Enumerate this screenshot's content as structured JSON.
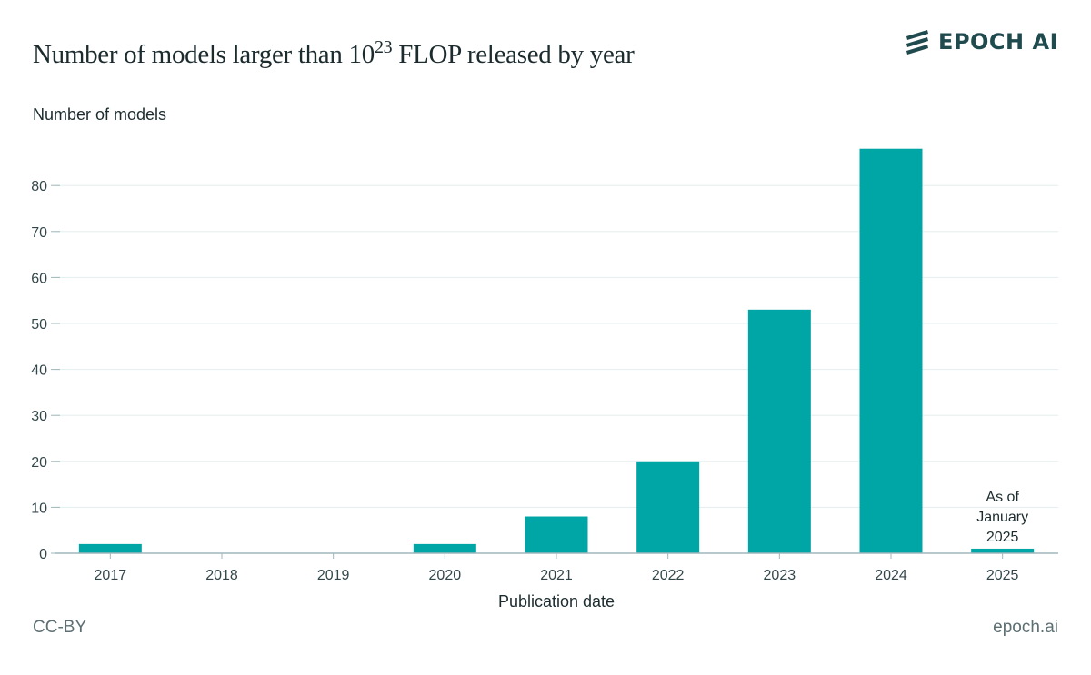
{
  "header": {
    "title_pre": "Number of models larger than 10",
    "title_sup": "23",
    "title_post": " FLOP released by year",
    "logo_text": "EPOCH AI",
    "logo_icon": "epoch-stripes-icon"
  },
  "footer": {
    "license": "CC-BY",
    "site": "epoch.ai"
  },
  "colors": {
    "bar": "#00a5a6",
    "grid": "#e3eeee",
    "axis": "#9fb7bb",
    "text": "#33474b",
    "logo": "#1f4a4e"
  },
  "chart_data": {
    "type": "bar",
    "title": "Number of models larger than 10^23 FLOP released by year",
    "xlabel": "Publication date",
    "ylabel": "Number of models",
    "categories": [
      "2017",
      "2018",
      "2019",
      "2020",
      "2021",
      "2022",
      "2023",
      "2024",
      "2025"
    ],
    "values": [
      2,
      0,
      0,
      2,
      8,
      20,
      53,
      88,
      1
    ],
    "yticks": [
      0,
      10,
      20,
      30,
      40,
      50,
      60,
      70,
      80
    ],
    "ylim": [
      0,
      90
    ],
    "grid": true,
    "annotations": [
      {
        "category": "2025",
        "lines": [
          "As of",
          "January",
          "2025"
        ]
      }
    ]
  }
}
